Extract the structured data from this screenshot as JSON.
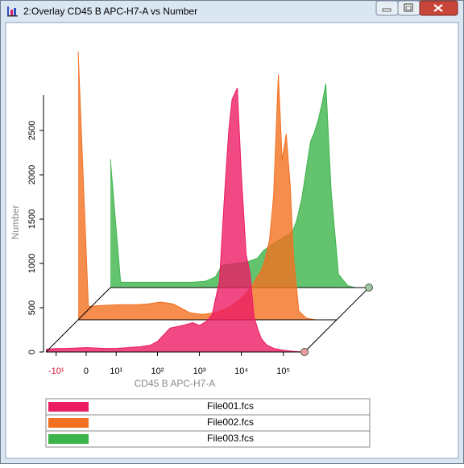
{
  "window": {
    "title": "2:Overlay CD45 B APC-H7-A vs Number"
  },
  "chart_data": {
    "type": "histogram-overlay-3d",
    "x_label": "CD45 B APC-H7-A",
    "y_label": "Number",
    "x_scale": "logicle",
    "xlim": [
      -18,
      280000
    ],
    "xticks": [
      {
        "value": -10,
        "label": "-10¹"
      },
      0,
      {
        "value": 10,
        "label": "10¹"
      },
      {
        "value": 100,
        "label": "10²"
      },
      {
        "value": 1000,
        "label": "10³"
      },
      {
        "value": 10000,
        "label": "10⁴"
      },
      {
        "value": 100000,
        "label": "10⁵"
      }
    ],
    "ylim": [
      0,
      2900
    ],
    "yticks": [
      0,
      500,
      1000,
      1500,
      2000,
      2500
    ],
    "x": [
      -18,
      -10,
      -5,
      0,
      5,
      10,
      20,
      40,
      70,
      100,
      200,
      400,
      700,
      1000,
      1500,
      2000,
      3000,
      4000,
      5000,
      6000,
      8000,
      10000,
      13000,
      16000,
      20000,
      25000,
      30000,
      40000,
      60000,
      100000,
      150000,
      280000
    ],
    "series": [
      {
        "name": "File001.fcs",
        "color": "#ec1c64",
        "values": [
          30,
          40,
          40,
          50,
          40,
          40,
          50,
          60,
          80,
          120,
          270,
          300,
          330,
          300,
          350,
          420,
          800,
          1800,
          2500,
          2850,
          2980,
          2000,
          1100,
          900,
          400,
          250,
          150,
          80,
          40,
          20,
          10,
          0
        ]
      },
      {
        "name": "File002.fcs",
        "color": "#f37021",
        "values": [
          3030,
          150,
          160,
          170,
          170,
          180,
          200,
          180,
          120,
          80,
          60,
          80,
          120,
          160,
          220,
          280,
          380,
          480,
          550,
          650,
          900,
          1400,
          2770,
          1800,
          2100,
          1500,
          700,
          100,
          20,
          0,
          0,
          0
        ]
      },
      {
        "name": "File003.fcs",
        "color": "#3cb44b",
        "values": [
          1450,
          60,
          60,
          60,
          60,
          60,
          60,
          70,
          120,
          250,
          270,
          290,
          330,
          420,
          480,
          520,
          570,
          600,
          650,
          750,
          1000,
          1300,
          1650,
          1750,
          1900,
          2100,
          2300,
          1100,
          150,
          20,
          0,
          0
        ]
      }
    ]
  }
}
